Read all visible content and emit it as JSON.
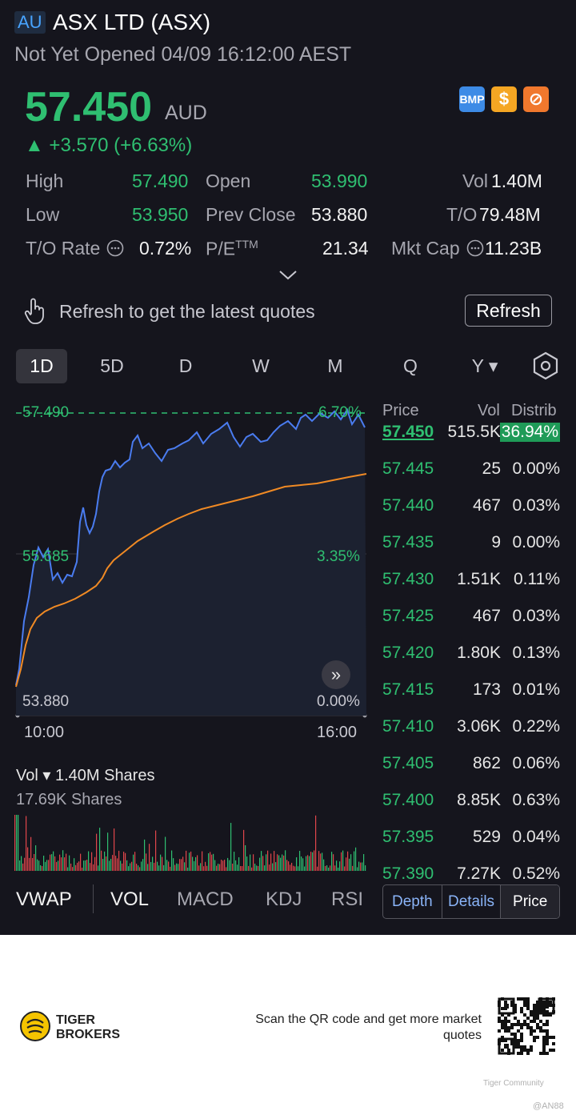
{
  "header": {
    "market_badge": "AU",
    "title": "ASX LTD (ASX)",
    "status": "Not Yet Opened 04/09 16:12:00 AEST",
    "price": "57.450",
    "currency": "AUD",
    "change": "▲ +3.570 (+6.63%)",
    "badges": [
      {
        "label": "BMP",
        "icon": "bmp-icon",
        "color": "#3d8be6"
      },
      {
        "label": "$",
        "icon": "dollar-icon",
        "color": "#f5a623"
      },
      {
        "label": "⊘",
        "icon": "options-icon",
        "color": "#f0782d"
      }
    ]
  },
  "stats": {
    "high_label": "High",
    "high": "57.490",
    "open_label": "Open",
    "open": "53.990",
    "vol_label": "Vol",
    "vol": "1.40M",
    "low_label": "Low",
    "low": "53.950",
    "prev_close_label": "Prev Close",
    "prev_close": "53.880",
    "to_label": "T/O",
    "to": "79.48M",
    "to_rate_label": "T/O Rate",
    "to_rate": "0.72%",
    "pe_label": "P/E",
    "pe_sup": "TTM",
    "pe": "21.34",
    "mkt_cap_label": "Mkt Cap",
    "mkt_cap": "11.23B"
  },
  "refresh": {
    "text": "Refresh to get the latest quotes",
    "button": "Refresh"
  },
  "periods": [
    "1D",
    "5D",
    "D",
    "W",
    "M",
    "Q",
    "Y ▾"
  ],
  "chart": {
    "high_price": "57.490",
    "high_pct": "6.70%",
    "mid_price": "55.685",
    "mid_pct": "3.35%",
    "low_price": "53.880",
    "low_pct": "0.00%",
    "time_start": "10:00",
    "time_end": "16:00",
    "price_color": "#4a7cf0",
    "avg_color": "#f08a24"
  },
  "volume": {
    "label": "Vol ▾ 1.40M Shares",
    "max": "17.69K Shares"
  },
  "indicators": [
    "VWAP",
    "VOL",
    "MACD",
    "KDJ",
    "RSI"
  ],
  "price_table": {
    "headers": [
      "Price",
      "Vol",
      "Distrib"
    ],
    "rows": [
      {
        "price": "57.450",
        "vol": "515.5K",
        "dist": "36.94%"
      },
      {
        "price": "57.445",
        "vol": "25",
        "dist": "0.00%"
      },
      {
        "price": "57.440",
        "vol": "467",
        "dist": "0.03%"
      },
      {
        "price": "57.435",
        "vol": "9",
        "dist": "0.00%"
      },
      {
        "price": "57.430",
        "vol": "1.51K",
        "dist": "0.11%"
      },
      {
        "price": "57.425",
        "vol": "467",
        "dist": "0.03%"
      },
      {
        "price": "57.420",
        "vol": "1.80K",
        "dist": "0.13%"
      },
      {
        "price": "57.415",
        "vol": "173",
        "dist": "0.01%"
      },
      {
        "price": "57.410",
        "vol": "3.06K",
        "dist": "0.22%"
      },
      {
        "price": "57.405",
        "vol": "862",
        "dist": "0.06%"
      },
      {
        "price": "57.400",
        "vol": "8.85K",
        "dist": "0.63%"
      },
      {
        "price": "57.395",
        "vol": "529",
        "dist": "0.04%"
      },
      {
        "price": "57.390",
        "vol": "7.27K",
        "dist": "0.52%"
      }
    ],
    "tabs": [
      "Depth",
      "Details",
      "Price"
    ]
  },
  "footer": {
    "brand": "TIGER BROKERS",
    "scan_text": "Scan the QR code and get more market quotes",
    "community": "Tiger Community",
    "handle": "@AN88"
  }
}
